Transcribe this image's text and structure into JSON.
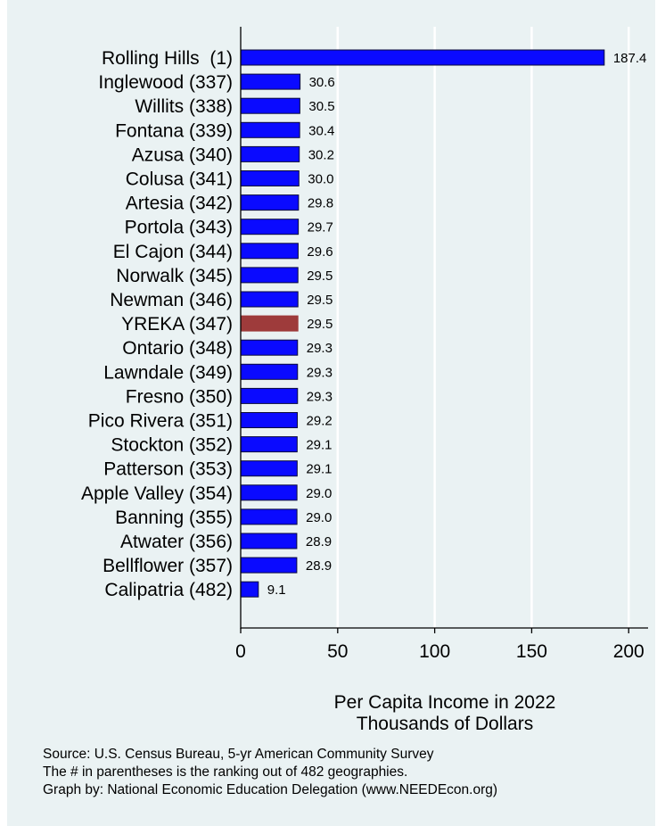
{
  "chart_data": {
    "type": "bar",
    "orientation": "horizontal",
    "categories": [
      "Rolling Hills  (1)",
      "Inglewood (337)",
      "Willits (338)",
      "Fontana (339)",
      "Azusa (340)",
      "Colusa (341)",
      "Artesia (342)",
      "Portola (343)",
      "El Cajon (344)",
      "Norwalk (345)",
      "Newman (346)",
      "YREKA (347)",
      "Ontario (348)",
      "Lawndale (349)",
      "Fresno (350)",
      "Pico Rivera (351)",
      "Stockton (352)",
      "Patterson (353)",
      "Apple Valley (354)",
      "Banning (355)",
      "Atwater (356)",
      "Bellflower (357)",
      "Calipatria (482)"
    ],
    "values": [
      187.4,
      30.6,
      30.5,
      30.4,
      30.2,
      30.0,
      29.8,
      29.7,
      29.6,
      29.5,
      29.5,
      29.5,
      29.3,
      29.3,
      29.3,
      29.2,
      29.1,
      29.1,
      29.0,
      29.0,
      28.9,
      28.9,
      9.1
    ],
    "value_labels": [
      "187.4",
      "30.6",
      "30.5",
      "30.4",
      "30.2",
      "30.0",
      "29.8",
      "29.7",
      "29.6",
      "29.5",
      "29.5",
      "29.5",
      "29.3",
      "29.3",
      "29.3",
      "29.2",
      "29.1",
      "29.1",
      "29.0",
      "29.0",
      "28.9",
      "28.9",
      "9.1"
    ],
    "highlight_category": "YREKA (347)",
    "colors": {
      "bar": "#0a0aff",
      "highlight": "#9e3b3b",
      "bar_edge": "#0a0a3a",
      "grid": "#ffffff",
      "background": "#eaf2f3"
    },
    "xlim": [
      0,
      210
    ],
    "xticks": [
      0,
      50,
      100,
      150,
      200
    ],
    "grid": true,
    "xlabel_lines": [
      "Per Capita Income in 2022",
      "Thousands of Dollars"
    ],
    "title": ""
  },
  "notes": [
    "Source: U.S. Census Bureau, 5-yr American Community Survey",
    "The # in parentheses is the ranking out of 482 geographies.",
    "Graph by: National Economic Education Delegation (www.NEEDEcon.org)"
  ]
}
